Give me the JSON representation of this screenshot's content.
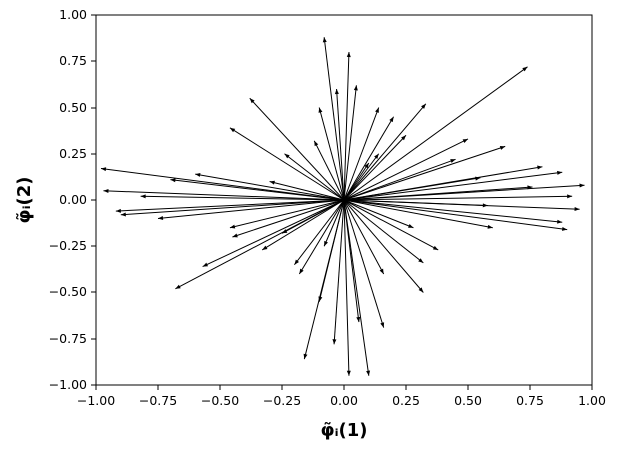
{
  "chart_data": {
    "type": "quiver",
    "xlabel": "φ̃ᵢ(1)",
    "ylabel": "φ̃ᵢ(2)",
    "xlim": [
      -1.0,
      1.0
    ],
    "ylim": [
      -1.0,
      1.0
    ],
    "xticks": [
      "−1.00",
      "−0.75",
      "−0.50",
      "−0.25",
      "0.00",
      "0.25",
      "0.50",
      "0.75",
      "1.00"
    ],
    "yticks": [
      "−1.00",
      "−0.75",
      "−0.50",
      "−0.25",
      "0.00",
      "0.25",
      "0.50",
      "0.75",
      "1.00"
    ],
    "grid": false,
    "origin": [
      0,
      0
    ],
    "series": [
      {
        "color": "#000000",
        "vectors": [
          [
            0.14,
            0.25
          ],
          [
            0.14,
            0.5
          ],
          [
            0.33,
            0.52
          ],
          [
            0.74,
            0.72
          ],
          [
            0.5,
            0.33
          ],
          [
            0.65,
            0.29
          ],
          [
            0.8,
            0.18
          ],
          [
            0.55,
            0.12
          ],
          [
            0.76,
            0.07
          ],
          [
            0.92,
            0.02
          ],
          [
            0.58,
            -0.03
          ],
          [
            0.88,
            -0.12
          ],
          [
            0.6,
            -0.15
          ],
          [
            0.38,
            -0.27
          ],
          [
            0.32,
            -0.34
          ],
          [
            0.32,
            -0.5
          ],
          [
            0.16,
            -0.69
          ],
          [
            0.1,
            -0.95
          ],
          [
            0.06,
            -0.66
          ],
          [
            0.02,
            -0.95
          ],
          [
            -0.04,
            -0.78
          ],
          [
            -0.1,
            -0.55
          ],
          [
            -0.16,
            -0.86
          ],
          [
            -0.18,
            -0.4
          ],
          [
            -0.25,
            -0.18
          ],
          [
            -0.33,
            -0.27
          ],
          [
            -0.57,
            -0.36
          ],
          [
            -0.68,
            -0.48
          ],
          [
            -0.46,
            -0.15
          ],
          [
            -0.75,
            -0.1
          ],
          [
            -0.92,
            -0.06
          ],
          [
            -0.82,
            0.02
          ],
          [
            -0.7,
            0.11
          ],
          [
            -0.98,
            0.17
          ],
          [
            -0.6,
            0.14
          ],
          [
            -0.46,
            0.39
          ],
          [
            -0.38,
            0.55
          ],
          [
            -0.24,
            0.25
          ],
          [
            -0.1,
            0.5
          ],
          [
            -0.08,
            0.88
          ],
          [
            -0.03,
            0.6
          ],
          [
            0.02,
            0.8
          ],
          [
            0.05,
            0.62
          ],
          [
            0.25,
            0.35
          ],
          [
            0.88,
            0.15
          ],
          [
            0.97,
            0.08
          ],
          [
            0.95,
            -0.05
          ],
          [
            0.9,
            -0.16
          ],
          [
            -0.9,
            -0.08
          ],
          [
            -0.97,
            0.05
          ],
          [
            0.2,
            0.45
          ],
          [
            -0.2,
            -0.35
          ],
          [
            0.16,
            -0.4
          ],
          [
            -0.12,
            0.32
          ],
          [
            0.45,
            0.22
          ],
          [
            -0.45,
            -0.2
          ],
          [
            0.28,
            -0.15
          ],
          [
            -0.3,
            0.1
          ],
          [
            0.1,
            0.2
          ],
          [
            -0.08,
            -0.25
          ]
        ]
      }
    ]
  }
}
